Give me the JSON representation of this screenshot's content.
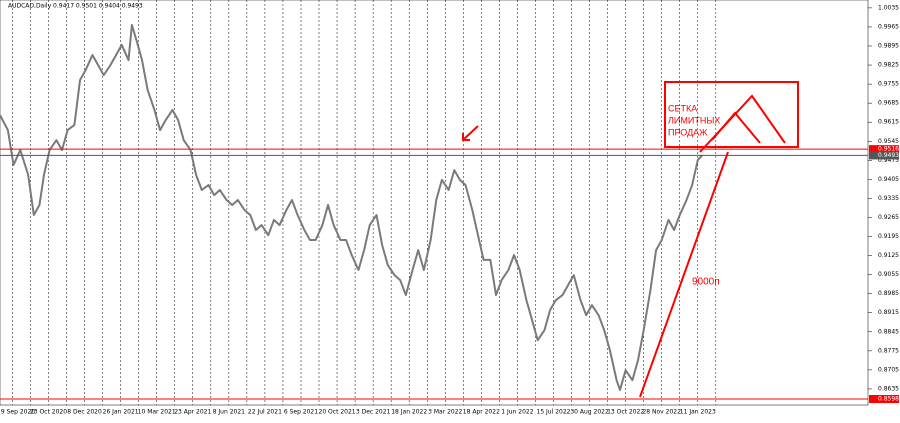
{
  "chart_data": {
    "type": "line",
    "header": "AUDCAD,Daily  0.9417 0.9501 0.9404 0.9493",
    "series": [
      {
        "name": "AUDCAD",
        "color": "#7a7a7a",
        "x": [
          0,
          7,
          12,
          18,
          25,
          30,
          35,
          39,
          44,
          50,
          55,
          60,
          66,
          71,
          76,
          82,
          87,
          92,
          98,
          103,
          108,
          114,
          117,
          121,
          126,
          131,
          137,
          142,
          147,
          153,
          158,
          163,
          169,
          174,
          179,
          185,
          190,
          195,
          201,
          206,
          211,
          217,
          222,
          227,
          232,
          238,
          243,
          248,
          254,
          259,
          264,
          270,
          275,
          280,
          286,
          291,
          296,
          302,
          307,
          312,
          318,
          323,
          328,
          334,
          339,
          344,
          350,
          355,
          360,
          366,
          371,
          376,
          382,
          387,
          392,
          398,
          403,
          408,
          413,
          419,
          424,
          429,
          435,
          440,
          445,
          451,
          456,
          461,
          467,
          472,
          477,
          483,
          488,
          493,
          499,
          504,
          509,
          515,
          520,
          525,
          531,
          536,
          541,
          547,
          550,
          555,
          561,
          566,
          571,
          577,
          582,
          587,
          593,
          598,
          603,
          609,
          614,
          619,
          623
        ],
        "values": [
          0.9641,
          0.9586,
          0.9458,
          0.9513,
          0.9421,
          0.9274,
          0.9311,
          0.9421,
          0.9513,
          0.9549,
          0.9513,
          0.9586,
          0.9605,
          0.977,
          0.9807,
          0.9862,
          0.9825,
          0.9788,
          0.9825,
          0.9862,
          0.9899,
          0.9843,
          0.9972,
          0.9917,
          0.9843,
          0.9733,
          0.966,
          0.9586,
          0.9623,
          0.966,
          0.9623,
          0.9549,
          0.9513,
          0.9421,
          0.9366,
          0.9384,
          0.9347,
          0.9366,
          0.9329,
          0.9311,
          0.9329,
          0.9292,
          0.9274,
          0.9219,
          0.9237,
          0.92,
          0.9256,
          0.9237,
          0.9292,
          0.9329,
          0.9274,
          0.9219,
          0.9182,
          0.9182,
          0.9237,
          0.9311,
          0.9237,
          0.9182,
          0.9182,
          0.9127,
          0.9072,
          0.9145,
          0.9237,
          0.9274,
          0.9164,
          0.909,
          0.9053,
          0.9035,
          0.898,
          0.9072,
          0.9145,
          0.9072,
          0.9182,
          0.9329,
          0.9403,
          0.9366,
          0.9439,
          0.9403,
          0.9384,
          0.9292,
          0.92,
          0.9109,
          0.9109,
          0.898,
          0.9035,
          0.9072,
          0.9127,
          0.9072,
          0.8961,
          0.8888,
          0.8814,
          0.8851,
          0.8925,
          0.8961,
          0.898,
          0.9017,
          0.9053,
          0.8961,
          0.8906,
          0.8943,
          0.8906,
          0.8851,
          0.8778,
          0.8667,
          0.8631,
          0.8704,
          0.8667,
          0.8741,
          0.8851,
          0.8998,
          0.9145,
          0.9182,
          0.9256,
          0.9219,
          0.9274,
          0.9329,
          0.9384,
          0.9476,
          0.9494
        ]
      }
    ],
    "xlim": [
      0,
      770
    ],
    "xticks": [
      {
        "value": 11,
        "label": "9 Sep 2020"
      },
      {
        "value": 43,
        "label": "23 Oct 2020"
      },
      {
        "value": 75,
        "label": "8 Dec 2020"
      },
      {
        "value": 107,
        "label": "26 Jan 2021"
      },
      {
        "value": 139,
        "label": "10 Mar 2021"
      },
      {
        "value": 171,
        "label": "23 Apr 2021"
      },
      {
        "value": 203,
        "label": "8 Jun 2021"
      },
      {
        "value": 235,
        "label": "22 Jul 2021"
      },
      {
        "value": 267,
        "label": "6 Sep 2021"
      },
      {
        "value": 299,
        "label": "20 Oct 2021"
      },
      {
        "value": 331,
        "label": "3 Dec 2021"
      },
      {
        "value": 363,
        "label": "18 Jan 2022"
      },
      {
        "value": 395,
        "label": "3 Mar 2022"
      },
      {
        "value": 427,
        "label": "18 Apr 2022"
      },
      {
        "value": 459,
        "label": "1 Jun 2022"
      },
      {
        "value": 491,
        "label": "15 Jul 2022"
      },
      {
        "value": 523,
        "label": "30 Aug 2022"
      },
      {
        "value": 555,
        "label": "13 Oct 2022"
      },
      {
        "value": 587,
        "label": "28 Nov 2022"
      },
      {
        "value": 619,
        "label": "11 Jan 2023"
      }
    ],
    "xminor": [
      27,
      59,
      91,
      123,
      155,
      187,
      219,
      251,
      283,
      315,
      347,
      379,
      411,
      443,
      475,
      507,
      539,
      571,
      603,
      635
    ],
    "ylim": [
      0.8576,
      1.0064
    ],
    "yticks": [
      1.0035,
      0.9965,
      0.9895,
      0.9825,
      0.9755,
      0.9685,
      0.9615,
      0.9545,
      0.9475,
      0.9405,
      0.9335,
      0.9265,
      0.9195,
      0.9125,
      0.9055,
      0.8985,
      0.8915,
      0.8845,
      0.8775,
      0.8705,
      0.8635
    ],
    "hlines": [
      {
        "value": 0.9516,
        "color": "#ff0000"
      },
      {
        "value": 0.9493,
        "color": "#555555"
      },
      {
        "value": 0.8598,
        "color": "#ff0000"
      }
    ],
    "annotations": [
      "СЕТКА",
      "ЛИМИТНЫХ",
      "ПРОДАЖ",
      "9000п"
    ]
  }
}
